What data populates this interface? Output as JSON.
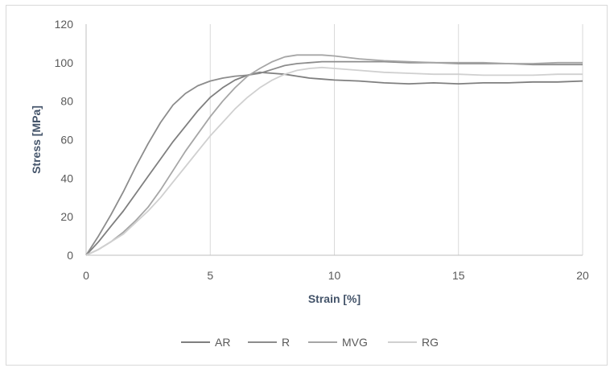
{
  "chart_data": {
    "type": "line",
    "title": "",
    "xlabel": "Strain [%]",
    "ylabel": "Stress [MPa]",
    "xlim": [
      0,
      20
    ],
    "ylim": [
      0,
      120
    ],
    "xticks": [
      0,
      5,
      10,
      15,
      20
    ],
    "yticks": [
      0,
      20,
      40,
      60,
      80,
      100,
      120
    ],
    "grid": "vertical",
    "legend_position": "bottom",
    "series": [
      {
        "name": "AR",
        "color": "#7f7f7f",
        "x": [
          0,
          0.5,
          1,
          1.5,
          2,
          2.5,
          3,
          3.5,
          4,
          4.5,
          5,
          5.5,
          6,
          6.5,
          7,
          7.5,
          8,
          8.5,
          9,
          9.5,
          10,
          11,
          12,
          13,
          14,
          15,
          16,
          17,
          18,
          19,
          20
        ],
        "y": [
          0,
          7,
          15,
          23,
          32,
          41,
          50,
          59,
          67,
          75,
          82,
          87,
          91,
          93.5,
          95,
          94.5,
          94,
          93,
          92,
          91.5,
          91,
          90.5,
          89.5,
          89,
          89.5,
          89,
          89.5,
          89.5,
          90,
          90,
          90.5
        ]
      },
      {
        "name": "R",
        "color": "#8c8c8c",
        "x": [
          0,
          0.5,
          1,
          1.5,
          2,
          2.5,
          3,
          3.5,
          4,
          4.5,
          5,
          5.5,
          6,
          6.5,
          7,
          7.5,
          8,
          8.5,
          9,
          9.5,
          10,
          11,
          12,
          13,
          14,
          15,
          16,
          17,
          18,
          19,
          20
        ],
        "y": [
          0,
          10,
          21,
          33,
          46,
          58,
          69,
          78,
          84,
          88,
          90.5,
          92,
          93,
          93.5,
          94.5,
          96.5,
          98.5,
          99.5,
          100,
          100.5,
          100.5,
          100.5,
          100.5,
          100,
          100,
          99.5,
          99.5,
          99.5,
          99,
          99,
          99
        ]
      },
      {
        "name": "MVG",
        "color": "#a6a6a6",
        "x": [
          0,
          0.5,
          1,
          1.5,
          2,
          2.5,
          3,
          3.5,
          4,
          4.5,
          5,
          5.5,
          6,
          6.5,
          7,
          7.5,
          8,
          8.5,
          9,
          9.5,
          10,
          11,
          12,
          13,
          14,
          15,
          16,
          17,
          18,
          19,
          20
        ],
        "y": [
          0,
          3,
          7,
          12,
          18,
          25,
          34,
          44,
          54,
          63,
          72,
          80,
          87,
          93,
          97,
          100.5,
          103,
          104,
          104,
          104,
          103.5,
          102,
          101,
          100.5,
          100,
          100,
          100,
          99.5,
          99.5,
          100,
          100
        ]
      },
      {
        "name": "RG",
        "color": "#d0d0d0",
        "x": [
          0,
          0.5,
          1,
          1.5,
          2,
          2.5,
          3,
          3.5,
          4,
          4.5,
          5,
          5.5,
          6,
          6.5,
          7,
          7.5,
          8,
          8.5,
          9,
          9.5,
          10,
          11,
          12,
          13,
          14,
          15,
          16,
          17,
          18,
          19,
          20
        ],
        "y": [
          0,
          3,
          7,
          11,
          17,
          23,
          30,
          38,
          46,
          54,
          62,
          69,
          76,
          82,
          87,
          91,
          94,
          96,
          97,
          97.5,
          97,
          96,
          95,
          94.5,
          94,
          94,
          93.5,
          93.5,
          93.5,
          94,
          94
        ]
      }
    ]
  }
}
